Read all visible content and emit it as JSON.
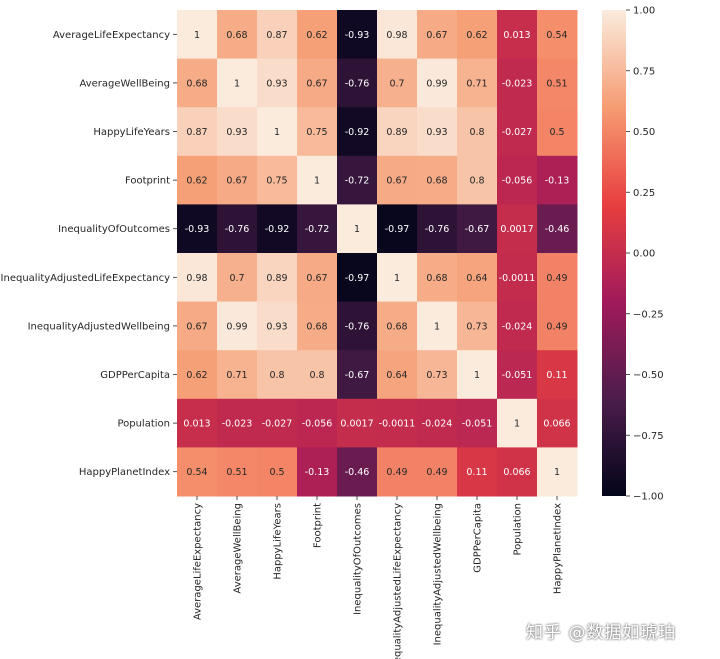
{
  "watermark": "知乎 @数据如琥珀",
  "colorscale": [
    "#03051a",
    "#4c1d4b",
    "#a11a5b",
    "#e83f3f",
    "#f69c73",
    "#faebdd"
  ],
  "chart_data": {
    "type": "heatmap",
    "title": "",
    "rows": [
      "AverageLifeExpectancy",
      "AverageWellBeing",
      "HappyLifeYears",
      "Footprint",
      "InequalityOfOutcomes",
      "InequalityAdjustedLifeExpectancy",
      "InequalityAdjustedWellbeing",
      "GDPPerCapita",
      "Population",
      "HappyPlanetIndex"
    ],
    "columns": [
      "AverageLifeExpectancy",
      "AverageWellBeing",
      "HappyLifeYears",
      "Footprint",
      "InequalityOfOutcomes",
      "InequalityAdjustedLifeExpectancy",
      "InequalityAdjustedWellbeing",
      "GDPPerCapita",
      "Population",
      "HappyPlanetIndex"
    ],
    "values": [
      [
        1,
        0.68,
        0.87,
        0.62,
        -0.93,
        0.98,
        0.67,
        0.62,
        0.013,
        0.54
      ],
      [
        0.68,
        1,
        0.93,
        0.67,
        -0.76,
        0.7,
        0.99,
        0.71,
        -0.023,
        0.51
      ],
      [
        0.87,
        0.93,
        1,
        0.75,
        -0.92,
        0.89,
        0.93,
        0.8,
        -0.027,
        0.5
      ],
      [
        0.62,
        0.67,
        0.75,
        1,
        -0.72,
        0.67,
        0.68,
        0.8,
        -0.056,
        -0.13
      ],
      [
        -0.93,
        -0.76,
        -0.92,
        -0.72,
        1,
        -0.97,
        -0.76,
        -0.67,
        0.0017,
        -0.46
      ],
      [
        0.98,
        0.7,
        0.89,
        0.67,
        -0.97,
        1,
        0.68,
        0.64,
        -0.0011,
        0.49
      ],
      [
        0.67,
        0.99,
        0.93,
        0.68,
        -0.76,
        0.68,
        1,
        0.73,
        -0.024,
        0.49
      ],
      [
        0.62,
        0.71,
        0.8,
        0.8,
        -0.67,
        0.64,
        0.73,
        1,
        -0.051,
        0.11
      ],
      [
        0.013,
        -0.023,
        -0.027,
        -0.056,
        0.0017,
        -0.0011,
        -0.024,
        -0.051,
        1,
        0.066
      ],
      [
        0.54,
        0.51,
        0.5,
        -0.13,
        -0.46,
        0.49,
        0.49,
        0.11,
        0.066,
        1
      ]
    ],
    "labels": [
      [
        "1",
        "0.68",
        "0.87",
        "0.62",
        "-0.93",
        "0.98",
        "0.67",
        "0.62",
        "0.013",
        "0.54"
      ],
      [
        "0.68",
        "1",
        "0.93",
        "0.67",
        "-0.76",
        "0.7",
        "0.99",
        "0.71",
        "-0.023",
        "0.51"
      ],
      [
        "0.87",
        "0.93",
        "1",
        "0.75",
        "-0.92",
        "0.89",
        "0.93",
        "0.8",
        "-0.027",
        "0.5"
      ],
      [
        "0.62",
        "0.67",
        "0.75",
        "1",
        "-0.72",
        "0.67",
        "0.68",
        "0.8",
        "-0.056",
        "-0.13"
      ],
      [
        "-0.93",
        "-0.76",
        "-0.92",
        "-0.72",
        "1",
        "-0.97",
        "-0.76",
        "-0.67",
        "0.0017",
        "-0.46"
      ],
      [
        "0.98",
        "0.7",
        "0.89",
        "0.67",
        "-0.97",
        "1",
        "0.68",
        "0.64",
        "-0.0011",
        "0.49"
      ],
      [
        "0.67",
        "0.99",
        "0.93",
        "0.68",
        "-0.76",
        "0.68",
        "1",
        "0.73",
        "-0.024",
        "0.49"
      ],
      [
        "0.62",
        "0.71",
        "0.8",
        "0.8",
        "-0.67",
        "0.64",
        "0.73",
        "1",
        "-0.051",
        "0.11"
      ],
      [
        "0.013",
        "-0.023",
        "-0.027",
        "-0.056",
        "0.0017",
        "-0.0011",
        "-0.024",
        "-0.051",
        "1",
        "0.066"
      ],
      [
        "0.54",
        "0.51",
        "0.5",
        "-0.13",
        "-0.46",
        "0.49",
        "0.49",
        "0.11",
        "0.066",
        "1"
      ]
    ],
    "vmin": -1,
    "vmax": 1,
    "colorbar_ticks": [
      1.0,
      0.75,
      0.5,
      0.25,
      0.0,
      -0.25,
      -0.5,
      -0.75,
      -1.0
    ],
    "colorbar_tick_labels": [
      "1.00",
      "0.75",
      "0.50",
      "0.25",
      "0.00",
      "−0.25",
      "−0.50",
      "−0.75",
      "−1.00"
    ],
    "grid": false,
    "legend": "colorbar right"
  }
}
